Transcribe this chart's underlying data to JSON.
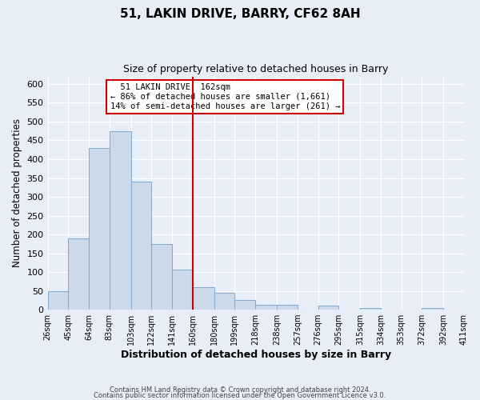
{
  "title": "51, LAKIN DRIVE, BARRY, CF62 8AH",
  "subtitle": "Size of property relative to detached houses in Barry",
  "xlabel": "Distribution of detached houses by size in Barry",
  "ylabel": "Number of detached properties",
  "bar_color": "#ccd9ea",
  "bar_edge_color": "#7fa8cc",
  "bin_labels": [
    "26sqm",
    "45sqm",
    "64sqm",
    "83sqm",
    "103sqm",
    "122sqm",
    "141sqm",
    "160sqm",
    "180sqm",
    "199sqm",
    "218sqm",
    "238sqm",
    "257sqm",
    "276sqm",
    "295sqm",
    "315sqm",
    "334sqm",
    "353sqm",
    "372sqm",
    "392sqm",
    "411sqm"
  ],
  "bin_edges": [
    26,
    45,
    64,
    83,
    103,
    122,
    141,
    160,
    180,
    199,
    218,
    238,
    257,
    276,
    295,
    315,
    334,
    353,
    372,
    392,
    411
  ],
  "bar_heights": [
    50,
    190,
    430,
    475,
    340,
    175,
    107,
    60,
    45,
    25,
    12,
    12,
    0,
    10,
    0,
    5,
    0,
    0,
    5,
    0
  ],
  "vline_x": 160,
  "vline_color": "#cc0000",
  "ylim": [
    0,
    620
  ],
  "yticks": [
    0,
    50,
    100,
    150,
    200,
    250,
    300,
    350,
    400,
    450,
    500,
    550,
    600
  ],
  "annotation_title": "51 LAKIN DRIVE: 162sqm",
  "annotation_line1": "← 86% of detached houses are smaller (1,661)",
  "annotation_line2": "14% of semi-detached houses are larger (261) →",
  "annotation_box_color": "#ffffff",
  "annotation_box_edge": "#cc0000",
  "footer_line1": "Contains HM Land Registry data © Crown copyright and database right 2024.",
  "footer_line2": "Contains public sector information licensed under the Open Government Licence v3.0.",
  "background_color": "#e8eef8",
  "grid_color": "#ffffff"
}
